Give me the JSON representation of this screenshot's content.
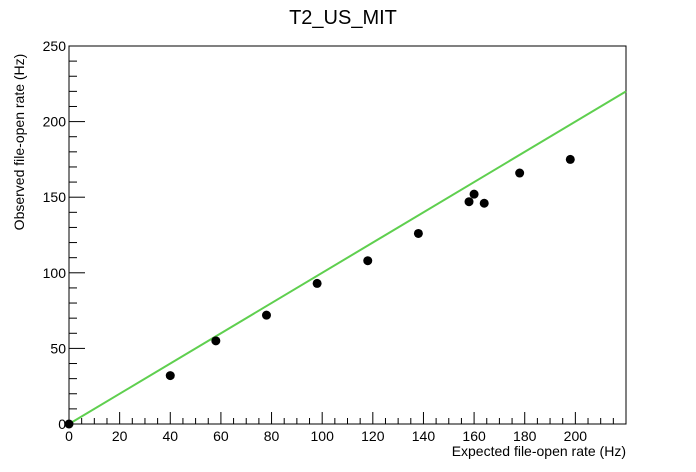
{
  "chart_data": {
    "type": "scatter",
    "title": "T2_US_MIT",
    "xlabel": "Expected file-open rate (Hz)",
    "ylabel": "Observed file-open rate (Hz)",
    "xlim": [
      0,
      220
    ],
    "ylim": [
      0,
      250
    ],
    "x_ticks": [
      0,
      20,
      40,
      60,
      80,
      100,
      120,
      140,
      160,
      180,
      200
    ],
    "y_ticks": [
      0,
      50,
      100,
      150,
      200,
      250
    ],
    "grid": false,
    "legend": "none",
    "series": [
      {
        "points": [
          {
            "x": 0,
            "y": 0
          },
          {
            "x": 40,
            "y": 32
          },
          {
            "x": 58,
            "y": 55
          },
          {
            "x": 78,
            "y": 72
          },
          {
            "x": 98,
            "y": 93
          },
          {
            "x": 118,
            "y": 108
          },
          {
            "x": 138,
            "y": 126
          },
          {
            "x": 158,
            "y": 147
          },
          {
            "x": 160,
            "y": 152
          },
          {
            "x": 164,
            "y": 146
          },
          {
            "x": 178,
            "y": 166
          },
          {
            "x": 198,
            "y": 175
          }
        ],
        "color": "#000000"
      }
    ],
    "reference_line": {
      "from": [
        0,
        0
      ],
      "to": [
        220,
        220
      ],
      "color": "#5fcf4f"
    }
  }
}
